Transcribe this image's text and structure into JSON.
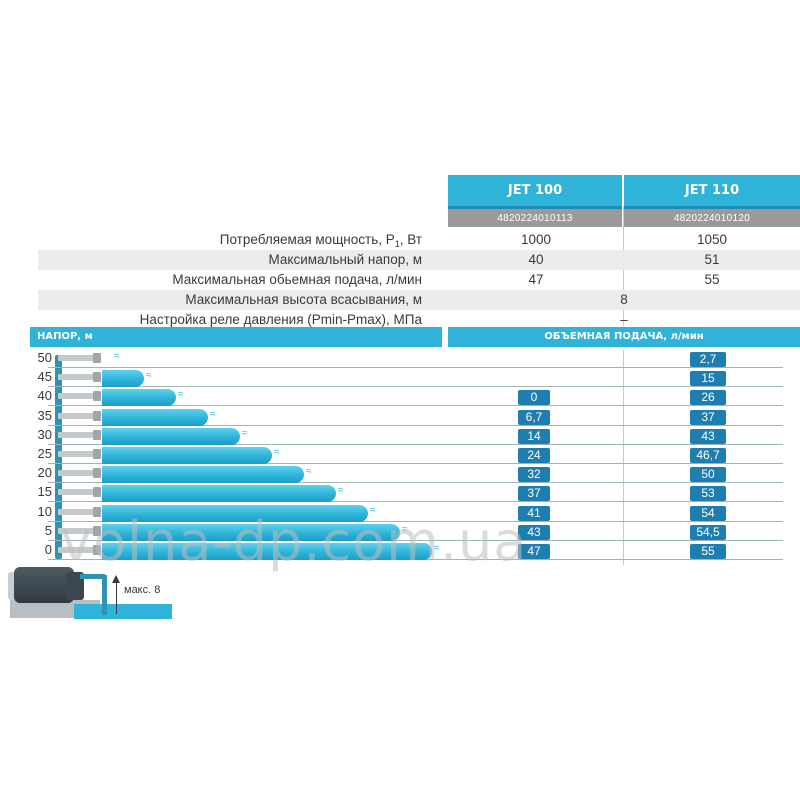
{
  "models": [
    {
      "name": "JET 100",
      "code": "4820224010113"
    },
    {
      "name": "JET 110",
      "code": "4820224010120"
    }
  ],
  "specs": {
    "power_label_main": "Потребляемая мощность, P",
    "power_label_sub": "1",
    "power_label_unit": ", Вт",
    "power_v1": "1000",
    "power_v2": "1050",
    "head_label": "Максимальный напор, м",
    "head_v1": "40",
    "head_v2": "51",
    "flow_label": "Максимальная обьемная подача, л/мин",
    "flow_v1": "47",
    "flow_v2": "55",
    "suction_label": "Максимальная высота всасывания, м",
    "suction_value": "8",
    "relay_label": "Настройка реле давления (Pmin-Pmax), МПа",
    "relay_value": "–"
  },
  "section": {
    "head_title": "НАПОР, м",
    "flow_title": "ОБЪЕМНАЯ ПОДАЧА, л/мин"
  },
  "chart_data": {
    "type": "table",
    "x_label": "НАПОР, м",
    "y_label": "ОБЪЕМНАЯ ПОДАЧА, л/мин",
    "heads": [
      "50",
      "45",
      "40",
      "35",
      "30",
      "25",
      "20",
      "15",
      "10",
      "5",
      "0"
    ],
    "series": [
      {
        "name": "JET 100",
        "values": [
          "",
          "",
          "0",
          "6,7",
          "14",
          "24",
          "32",
          "37",
          "41",
          "43",
          "47"
        ]
      },
      {
        "name": "JET 110",
        "values": [
          "2,7",
          "15",
          "26",
          "37",
          "43",
          "46,7",
          "50",
          "53",
          "54",
          "54,5",
          "55"
        ]
      }
    ]
  },
  "pump": {
    "max_label": "макс. 8"
  },
  "watermark": "volna-dp.com.ua",
  "colors": {
    "accent": "#2fb3d8",
    "badge": "#1f7eb0",
    "code_bar": "#9a9a9a"
  }
}
